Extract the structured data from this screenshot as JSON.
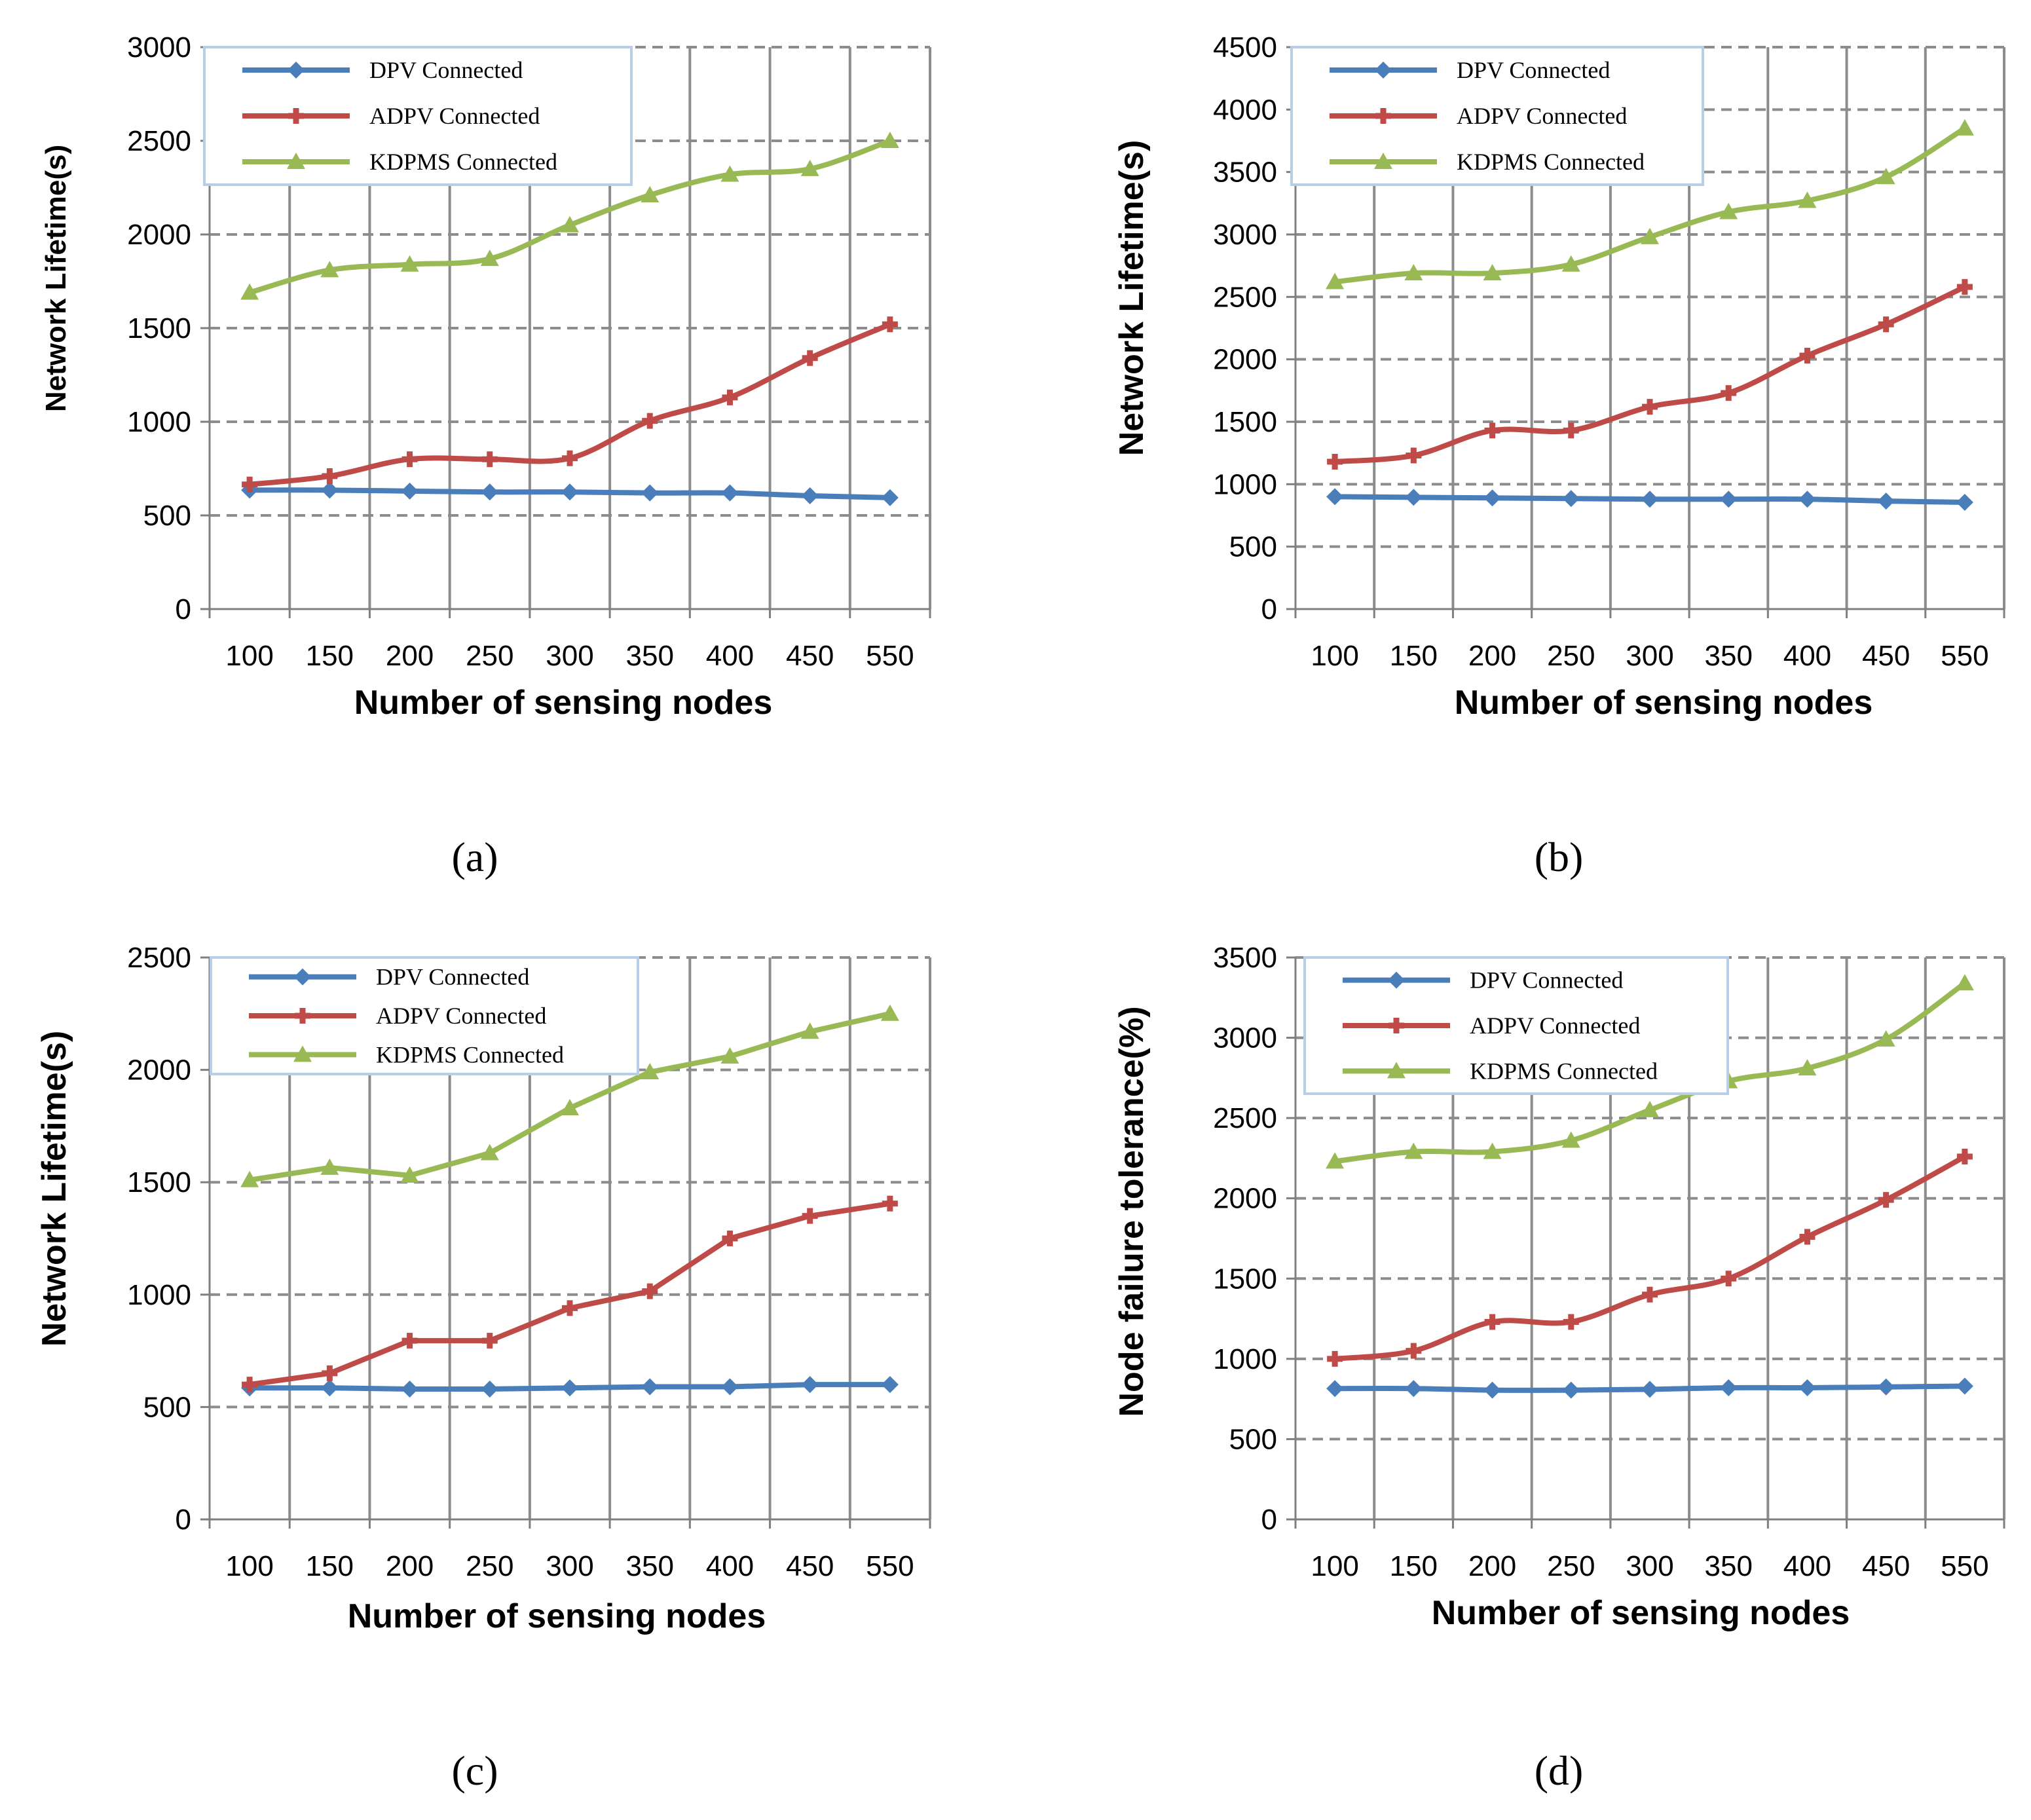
{
  "series_colors": [
    "#4a7ebb",
    "#be4b48",
    "#98b954"
  ],
  "chart_data": [
    {
      "type": "line",
      "panel_label": "(a)",
      "title": "",
      "xlabel": "Number of sensing nodes",
      "ylabel": "Network Lifetime(s)",
      "categories": [
        "100",
        "150",
        "200",
        "250",
        "300",
        "350",
        "400",
        "450",
        "550"
      ],
      "ylim": [
        0,
        3000
      ],
      "yticks": [
        "0",
        "500",
        "1000",
        "1500",
        "2000",
        "2500",
        "3000"
      ],
      "grid": true,
      "legend": "top-left",
      "series": [
        {
          "name": "DPV Connected",
          "marker": "diamond",
          "values": [
            635,
            635,
            630,
            625,
            625,
            620,
            620,
            605,
            595
          ]
        },
        {
          "name": "ADPV Connected",
          "marker": "plus",
          "values": [
            665,
            710,
            800,
            800,
            805,
            1005,
            1130,
            1340,
            1520
          ]
        },
        {
          "name": "KDPMS Connected",
          "marker": "triangle",
          "values": [
            1690,
            1810,
            1840,
            1870,
            2050,
            2210,
            2320,
            2350,
            2500
          ]
        }
      ]
    },
    {
      "type": "line",
      "panel_label": "(b)",
      "title": "",
      "xlabel": "Number of sensing nodes",
      "ylabel": "Network Lifetime(s)",
      "categories": [
        "100",
        "150",
        "200",
        "250",
        "300",
        "350",
        "400",
        "450",
        "550"
      ],
      "ylim": [
        0,
        4500
      ],
      "yticks": [
        "0",
        "500",
        "1000",
        "1500",
        "2000",
        "2500",
        "3000",
        "3500",
        "4000",
        "4500"
      ],
      "grid": true,
      "legend": "top-left",
      "series": [
        {
          "name": "DPV Connected",
          "marker": "diamond",
          "values": [
            900,
            895,
            890,
            885,
            880,
            880,
            880,
            865,
            855
          ]
        },
        {
          "name": "ADPV Connected",
          "marker": "plus",
          "values": [
            1180,
            1230,
            1430,
            1430,
            1620,
            1730,
            2030,
            2280,
            2580
          ]
        },
        {
          "name": "KDPMS Connected",
          "marker": "triangle",
          "values": [
            2620,
            2690,
            2690,
            2760,
            2980,
            3180,
            3270,
            3460,
            3850
          ]
        }
      ]
    },
    {
      "type": "line",
      "panel_label": "(c)",
      "title": "",
      "xlabel": "Number of sensing nodes",
      "ylabel": "Network Lifetime(s)",
      "categories": [
        "100",
        "150",
        "200",
        "250",
        "300",
        "350",
        "400",
        "450",
        "550"
      ],
      "ylim": [
        0,
        2500
      ],
      "yticks": [
        "0",
        "500",
        "1000",
        "1500",
        "2000",
        "2500"
      ],
      "grid": true,
      "legend": "top-left",
      "series": [
        {
          "name": "DPV Connected",
          "marker": "diamond",
          "values": [
            585,
            585,
            580,
            580,
            585,
            590,
            590,
            600,
            600
          ]
        },
        {
          "name": "ADPV Connected",
          "marker": "plus",
          "values": [
            600,
            650,
            795,
            795,
            940,
            1015,
            1250,
            1350,
            1405
          ]
        },
        {
          "name": "KDPMS Connected",
          "marker": "triangle",
          "values": [
            1510,
            1565,
            1530,
            1630,
            1830,
            1990,
            2060,
            2170,
            2250
          ]
        }
      ]
    },
    {
      "type": "line",
      "panel_label": "(d)",
      "title": "",
      "xlabel": "Number of sensing nodes",
      "ylabel": "Node failure tolerance(%)",
      "categories": [
        "100",
        "150",
        "200",
        "250",
        "300",
        "350",
        "400",
        "450",
        "550"
      ],
      "ylim": [
        0,
        3500
      ],
      "yticks": [
        "0",
        "500",
        "1000",
        "1500",
        "2000",
        "2500",
        "3000",
        "3500"
      ],
      "grid": true,
      "legend": "top-left",
      "series": [
        {
          "name": "DPV Connected",
          "marker": "diamond",
          "values": [
            815,
            815,
            805,
            805,
            810,
            820,
            820,
            825,
            830
          ]
        },
        {
          "name": "ADPV Connected",
          "marker": "plus",
          "values": [
            1000,
            1050,
            1230,
            1230,
            1400,
            1500,
            1760,
            1990,
            2260
          ]
        },
        {
          "name": "KDPMS Connected",
          "marker": "triangle",
          "values": [
            2230,
            2290,
            2290,
            2360,
            2550,
            2730,
            2810,
            2990,
            3340
          ]
        }
      ]
    }
  ]
}
